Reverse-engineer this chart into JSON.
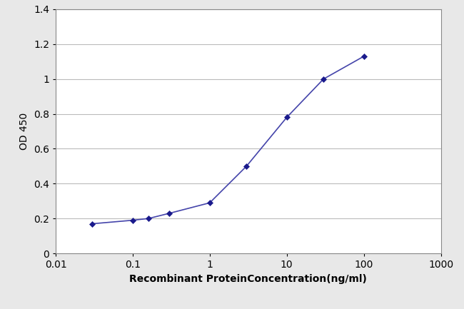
{
  "x": [
    0.03,
    0.1,
    0.16,
    0.3,
    1.0,
    3.0,
    10.0,
    30.0,
    100.0
  ],
  "y": [
    0.17,
    0.19,
    0.2,
    0.23,
    0.29,
    0.5,
    0.78,
    1.0,
    1.13
  ],
  "line_color": "#4444aa",
  "marker_color": "#1a1a8c",
  "marker": "D",
  "marker_size": 4,
  "line_width": 1.2,
  "xlabel": "Recombinant ProteinConcentration(ng/ml)",
  "ylabel": "OD 450",
  "xlim": [
    0.01,
    1000
  ],
  "ylim": [
    0,
    1.4
  ],
  "yticks": [
    0,
    0.2,
    0.4,
    0.6,
    0.8,
    1.0,
    1.2,
    1.4
  ],
  "ytick_labels": [
    "0",
    "0.2",
    "0.4",
    "0.6",
    "0.8",
    "1",
    "1.2",
    "1.4"
  ],
  "xticks": [
    0.01,
    0.1,
    1,
    10,
    100,
    1000
  ],
  "xtick_labels": [
    "0.01",
    "0.1",
    "1",
    "10",
    "100",
    "1000"
  ],
  "grid_color": "#bbbbbb",
  "background_color": "#e8e8e8",
  "plot_bg_color": "#ffffff",
  "xlabel_fontsize": 10,
  "ylabel_fontsize": 10,
  "tick_fontsize": 10,
  "xlabel_fontweight": "bold",
  "linestyle": "-"
}
